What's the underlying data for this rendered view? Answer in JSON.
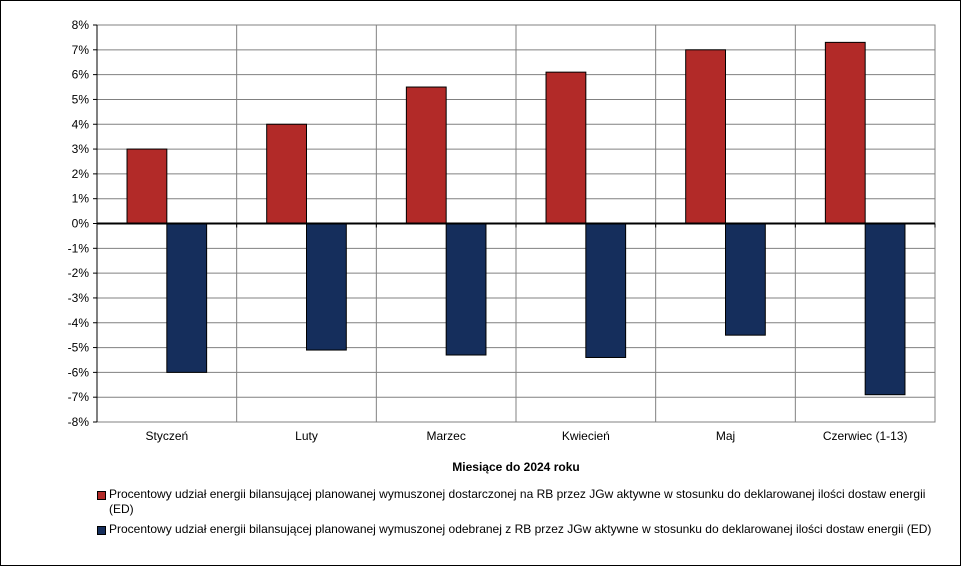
{
  "chart_data": {
    "type": "bar",
    "categories": [
      "Styczeń",
      "Luty",
      "Marzec",
      "Kwiecień",
      "Maj",
      "Czerwiec (1-13)"
    ],
    "series": [
      {
        "name": "Procentowy udział energii bilansującej planowanej wymuszonej dostarczonej na RB przez JGw aktywne w stosunku do deklarowanej ilości dostaw energii (ED)",
        "color": "#B22A28",
        "values": [
          3.0,
          4.0,
          5.5,
          6.1,
          7.0,
          7.3
        ]
      },
      {
        "name": "Procentowy udział energii bilansującej planowanej wymuszonej odebranej z RB przez JGw aktywne w stosunku do deklarowanej ilości dostaw energii (ED)",
        "color": "#152E5C",
        "values": [
          -6.0,
          -5.1,
          -5.3,
          -5.4,
          -4.5,
          -6.9
        ]
      }
    ],
    "yticks": [
      "8%",
      "7%",
      "6%",
      "5%",
      "4%",
      "3%",
      "2%",
      "1%",
      "0%",
      "-1%",
      "-2%",
      "-3%",
      "-4%",
      "-5%",
      "-6%",
      "-7%",
      "-8%"
    ],
    "ylim": [
      -8,
      8
    ],
    "xlabel": "Miesiące do 2024  roku",
    "ylabel": "",
    "grid": true,
    "legend_position": "bottom"
  }
}
